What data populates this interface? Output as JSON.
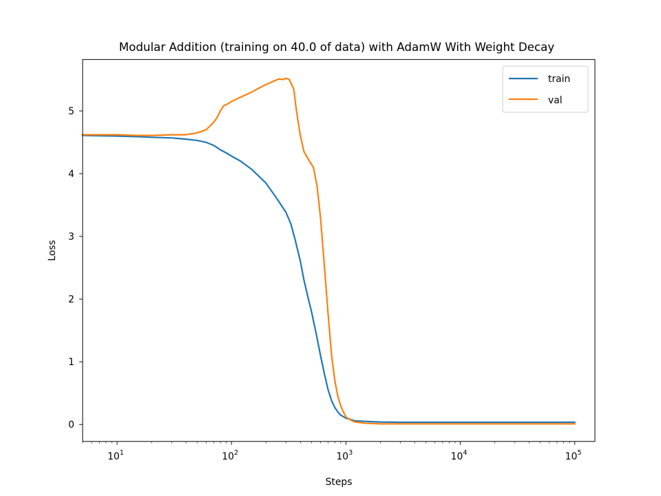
{
  "chart_data": {
    "type": "line",
    "title": "Modular Addition (training on 40.0 of data) with AdamW With Weight Decay",
    "xlabel": "Steps",
    "ylabel": "Loss",
    "xscale": "log",
    "xlim": [
      5,
      150000
    ],
    "ylim": [
      -0.27,
      5.82
    ],
    "xticks": [
      {
        "value": 10,
        "base": "10",
        "exp": "1"
      },
      {
        "value": 100,
        "base": "10",
        "exp": "2"
      },
      {
        "value": 1000,
        "base": "10",
        "exp": "3"
      },
      {
        "value": 10000,
        "base": "10",
        "exp": "4"
      },
      {
        "value": 100000,
        "base": "10",
        "exp": "5"
      }
    ],
    "yticks": [
      0,
      1,
      2,
      3,
      4,
      5
    ],
    "grid": false,
    "legend_position": "top-right",
    "series": [
      {
        "name": "train",
        "color": "#1f77b4",
        "x": [
          5,
          10,
          15,
          20,
          30,
          40,
          50,
          60,
          70,
          80,
          90,
          100,
          120,
          150,
          200,
          250,
          300,
          330,
          360,
          400,
          430,
          470,
          500,
          550,
          600,
          650,
          700,
          750,
          800,
          850,
          900,
          1000,
          1100,
          1200,
          1500,
          2000,
          3000,
          5000,
          10000,
          20000,
          50000,
          100000
        ],
        "y": [
          4.61,
          4.6,
          4.59,
          4.58,
          4.57,
          4.55,
          4.53,
          4.5,
          4.45,
          4.38,
          4.33,
          4.28,
          4.2,
          4.07,
          3.85,
          3.6,
          3.38,
          3.2,
          2.95,
          2.6,
          2.3,
          2.0,
          1.8,
          1.45,
          1.1,
          0.8,
          0.55,
          0.38,
          0.27,
          0.2,
          0.15,
          0.1,
          0.08,
          0.06,
          0.05,
          0.04,
          0.035,
          0.035,
          0.035,
          0.035,
          0.035,
          0.035
        ]
      },
      {
        "name": "val",
        "color": "#ff7f0e",
        "x": [
          5,
          10,
          15,
          20,
          30,
          40,
          50,
          60,
          70,
          75,
          80,
          85,
          90,
          100,
          120,
          150,
          180,
          200,
          230,
          260,
          280,
          300,
          320,
          350,
          370,
          400,
          430,
          480,
          520,
          560,
          600,
          650,
          700,
          750,
          800,
          850,
          900,
          950,
          1000,
          1100,
          1200,
          1500,
          2000,
          3000,
          5000,
          10000,
          50000,
          100000
        ],
        "y": [
          4.62,
          4.62,
          4.61,
          4.61,
          4.62,
          4.62,
          4.65,
          4.7,
          4.82,
          4.9,
          5.0,
          5.08,
          5.1,
          5.15,
          5.22,
          5.3,
          5.38,
          5.42,
          5.47,
          5.51,
          5.5,
          5.52,
          5.5,
          5.35,
          5.0,
          4.6,
          4.35,
          4.2,
          4.1,
          3.8,
          3.3,
          2.5,
          1.75,
          1.1,
          0.7,
          0.45,
          0.3,
          0.2,
          0.12,
          0.07,
          0.04,
          0.02,
          0.01,
          0.01,
          0.01,
          0.01,
          0.01,
          0.01
        ]
      }
    ]
  }
}
